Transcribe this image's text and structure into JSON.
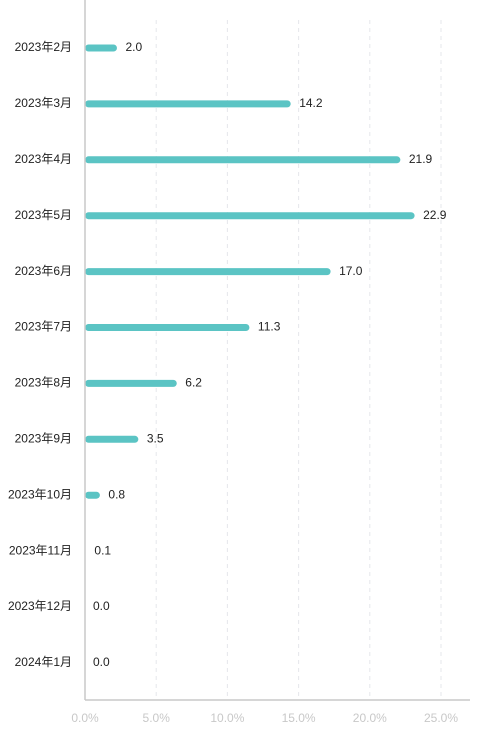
{
  "colors": {
    "bar": "#5bc4c4",
    "axis": "#c8c8c8",
    "grid": "#e5e7eb",
    "text": "#222222"
  },
  "chart_data": {
    "type": "bar",
    "orientation": "horizontal",
    "title": "",
    "xlabel": "",
    "ylabel": "",
    "grid": true,
    "legend": "none",
    "xlim": [
      0,
      25
    ],
    "x_ticks": [
      0,
      5,
      10,
      15,
      20,
      25
    ],
    "x_tick_labels": [
      "0.0%",
      "5.0%",
      "10.0%",
      "15.0%",
      "20.0%",
      "25.0%"
    ],
    "categories": [
      "2023年2月",
      "2023年3月",
      "2023年4月",
      "2023年5月",
      "2023年6月",
      "2023年7月",
      "2023年8月",
      "2023年9月",
      "2023年10月",
      "2023年11月",
      "2023年12月",
      "2024年1月"
    ],
    "values": [
      2.0,
      14.2,
      21.9,
      22.9,
      17.0,
      11.3,
      6.2,
      3.5,
      0.8,
      0.1,
      0.0,
      0.0
    ],
    "value_labels": [
      "2.0",
      "14.2",
      "21.9",
      "22.9",
      "17.0",
      "11.3",
      "6.2",
      "3.5",
      "0.8",
      "0.1",
      "0.0",
      "0.0"
    ]
  }
}
